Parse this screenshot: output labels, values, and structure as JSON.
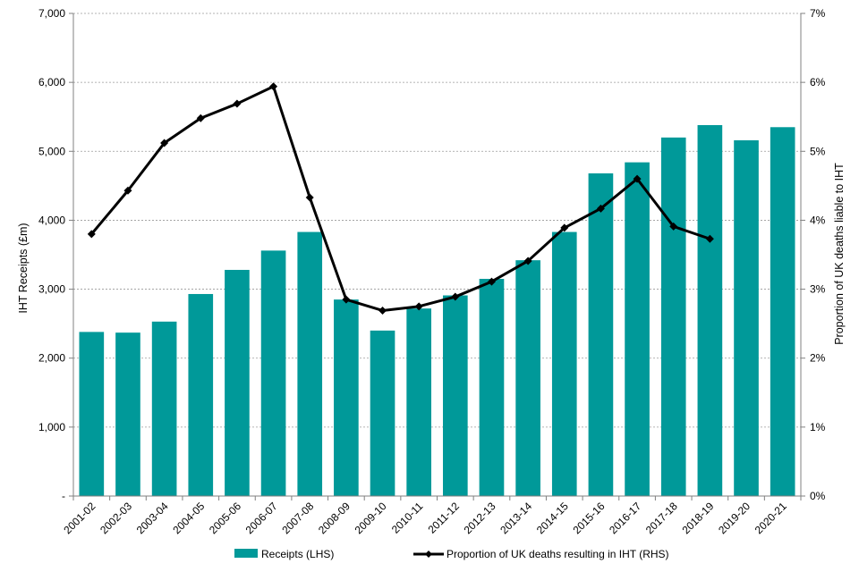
{
  "chart_data": {
    "type": "bar",
    "categories": [
      "2001-02",
      "2002-03",
      "2003-04",
      "2004-05",
      "2005-06",
      "2006-07",
      "2007-08",
      "2008-09",
      "2009-10",
      "2010-11",
      "2011-12",
      "2012-13",
      "2013-14",
      "2014-15",
      "2015-16",
      "2016-17",
      "2017-18",
      "2018-19",
      "2019-20",
      "2020-21"
    ],
    "series": [
      {
        "name": "Receipts (LHS)",
        "type": "bar",
        "axis": "left",
        "color": "#009999",
        "values": [
          2380,
          2370,
          2530,
          2930,
          3280,
          3560,
          3830,
          2850,
          2400,
          2720,
          2910,
          3150,
          3420,
          3830,
          4680,
          4840,
          5200,
          5380,
          5160,
          5350
        ]
      },
      {
        "name": "Proportion of UK deaths resulting in IHT (RHS)",
        "type": "line",
        "axis": "right",
        "color": "#000000",
        "values": [
          3.8,
          4.43,
          5.12,
          5.48,
          5.69,
          5.94,
          4.33,
          2.85,
          2.69,
          2.75,
          2.89,
          3.11,
          3.41,
          3.89,
          4.17,
          4.6,
          3.91,
          3.73,
          null,
          null
        ]
      }
    ],
    "y_left": {
      "label": "IHT Receipts (£m)",
      "lim": [
        0,
        7000
      ],
      "ticks": [
        0,
        1000,
        2000,
        3000,
        4000,
        5000,
        6000,
        7000
      ],
      "tick_labels": [
        "-",
        "1,000",
        "2,000",
        "3,000",
        "4,000",
        "5,000",
        "6,000",
        "7,000"
      ]
    },
    "y_right": {
      "label": "Proportion of UK deaths liable to IHT",
      "lim": [
        0,
        7
      ],
      "ticks": [
        0,
        1,
        2,
        3,
        4,
        5,
        6,
        7
      ],
      "tick_labels": [
        "0%",
        "1%",
        "2%",
        "3%",
        "4%",
        "5%",
        "6%",
        "7%"
      ]
    },
    "grid": true,
    "legend": {
      "position": "bottom"
    }
  }
}
